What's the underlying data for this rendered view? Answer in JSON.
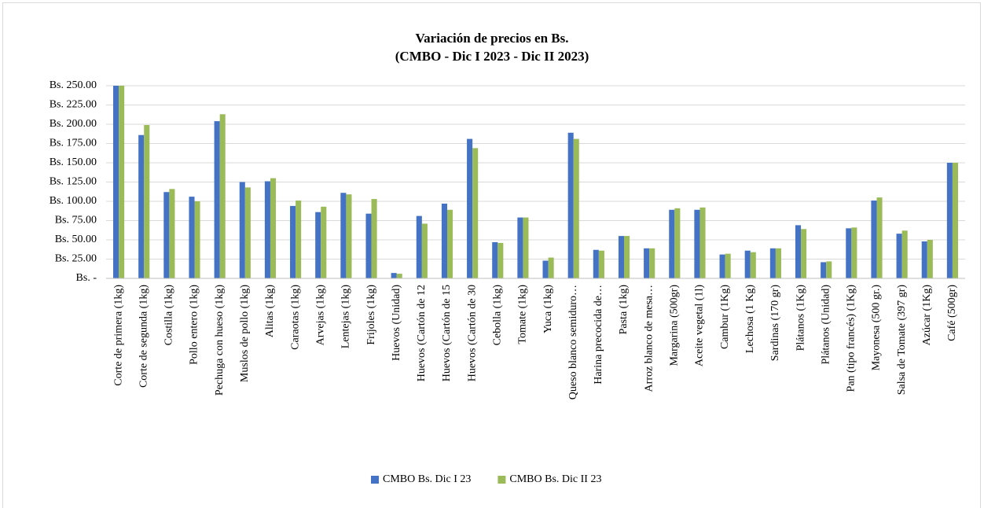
{
  "chart_data": {
    "type": "bar",
    "title": [
      "Variación de precios en Bs.",
      "(CMBO - Dic I 2023 - Dic II 2023)"
    ],
    "categories": [
      "Corte de primera (1kg)",
      "Corte de segunda (1kg)",
      "Costilla (1kg)",
      "Pollo entero (1kg)",
      "Pechuga con hueso (1kg)",
      "Muslos de pollo (1kg)",
      "Alitas (1kg)",
      "Caraotas (1kg)",
      "Arvejas (1kg)",
      "Lentejas (1kg)",
      "Frijoles (1kg)",
      "Huevos (Unidad)",
      "Huevos (Cartón de 12",
      "Huevos (Cartón de 15",
      "Huevos (Cartón de 30",
      "Cebolla (1kg)",
      "Tomate (1kg)",
      "Yuca (1kg)",
      "Queso blanco semiduro…",
      "Harina precocida de…",
      "Pasta (1kg)",
      "Arroz blanco de mesa…",
      "Margarina (500gr)",
      "Aceite vegetal (1l)",
      "Cambur (1Kg)",
      "Lechosa (1 Kg)",
      "Sardinas (170 gr)",
      "Plátanos (1Kg)",
      "Plátanos (Unidad)",
      "Pan (tipo francés) (1Kg)",
      "Mayonesa (500 gr.)",
      "Salsa de Tomate (397 gr)",
      "Azúcar (1Kg)",
      "Café (500gr)"
    ],
    "series": [
      {
        "name": "CMBO Bs. Dic I 23",
        "color": "#4472c4",
        "values": [
          250,
          186,
          112,
          106,
          204,
          125,
          126,
          94,
          86,
          111,
          84,
          7,
          81,
          97,
          181,
          47,
          79,
          23,
          189,
          37,
          55,
          39,
          89,
          89,
          31,
          36,
          39,
          69,
          21,
          65,
          101,
          58,
          48,
          150
        ]
      },
      {
        "name": "CMBO Bs. Dic II 23",
        "color": "#9bbb59",
        "values": [
          250,
          199,
          116,
          100,
          213,
          118,
          130,
          101,
          93,
          109,
          103,
          6,
          71,
          89,
          169,
          46,
          79,
          27,
          181,
          36,
          55,
          39,
          91,
          92,
          32,
          34,
          39,
          64,
          22,
          66,
          105,
          62,
          50,
          150
        ]
      }
    ],
    "ylim": [
      0,
      250
    ],
    "yticks": [
      {
        "value": 0,
        "label": "Bs. -"
      },
      {
        "value": 25,
        "label": "Bs. 25.00"
      },
      {
        "value": 50,
        "label": "Bs. 50.00"
      },
      {
        "value": 75,
        "label": "Bs. 75.00"
      },
      {
        "value": 100,
        "label": "Bs. 100.00"
      },
      {
        "value": 125,
        "label": "Bs. 125.00"
      },
      {
        "value": 150,
        "label": "Bs. 150.00"
      },
      {
        "value": 175,
        "label": "Bs. 175.00"
      },
      {
        "value": 200,
        "label": "Bs. 200.00"
      },
      {
        "value": 225,
        "label": "Bs. 225.00"
      },
      {
        "value": 250,
        "label": "Bs. 250.00"
      }
    ],
    "grid": true,
    "legend": "bottom"
  }
}
